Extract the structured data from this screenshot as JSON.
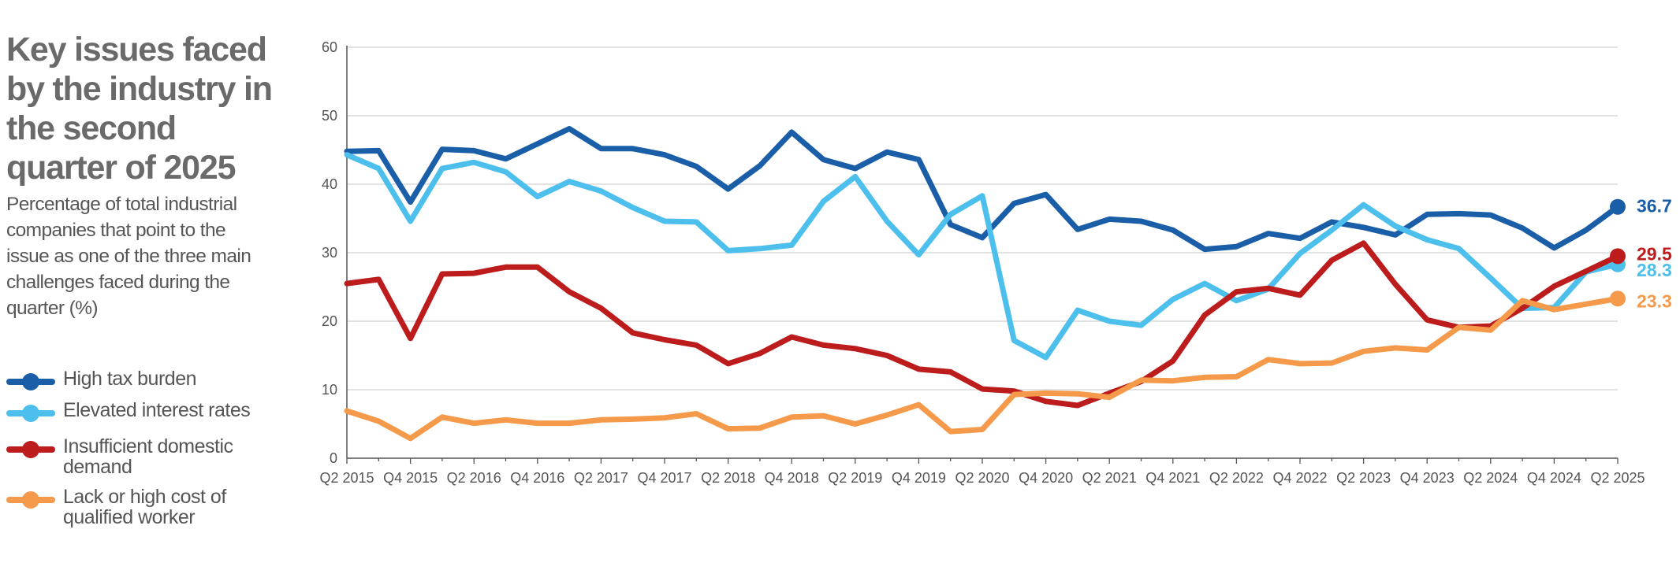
{
  "chart_data": {
    "type": "line",
    "title": "Key issues faced by the industry in the second quarter of 2025",
    "subtitle": "Percentage of total industrial companies that point to the issue as one of the three main challenges faced during the quarter (%)",
    "ylim": [
      0,
      60
    ],
    "yticks": [
      "0",
      "10",
      "20",
      "30",
      "40",
      "50",
      "60"
    ],
    "xtick_labels": [
      "Q2 2015",
      "Q4 2015",
      "Q2 2016",
      "Q4 2016",
      "Q2 2017",
      "Q4 2017",
      "Q2 2018",
      "Q4 2018",
      "Q2 2019",
      "Q4 2019",
      "Q2 2020",
      "Q4 2020",
      "Q2 2021",
      "Q4 2021",
      "Q2 2022",
      "Q4 2022",
      "Q2 2023",
      "Q4 2023",
      "Q2 2024",
      "Q4 2024",
      "Q2 2025"
    ],
    "grid": true,
    "legend_position": "left",
    "series": [
      {
        "name": "High tax burden",
        "color": "#1b5ea8",
        "end_label": "36.7",
        "values": [
          44.8,
          44.9,
          37.4,
          45.1,
          44.9,
          43.7,
          45.9,
          48.1,
          45.2,
          45.2,
          44.3,
          42.6,
          39.3,
          42.7,
          47.6,
          43.6,
          42.3,
          44.7,
          43.6,
          34.1,
          32.2,
          37.2,
          38.5,
          33.4,
          34.9,
          34.6,
          33.3,
          30.5,
          30.9,
          32.8,
          32.1,
          34.5,
          33.7,
          32.6,
          35.6,
          35.7,
          35.5,
          33.6,
          30.7,
          33.3,
          36.7
        ]
      },
      {
        "name": "Elevated interest rates",
        "color": "#4cbfec",
        "end_label": "28.3",
        "values": [
          44.3,
          42.3,
          34.6,
          42.3,
          43.2,
          41.8,
          38.2,
          40.4,
          39.0,
          36.6,
          34.6,
          34.5,
          30.3,
          30.6,
          31.1,
          37.5,
          41.1,
          34.6,
          29.7,
          35.6,
          38.3,
          17.2,
          14.7,
          21.6,
          20.0,
          19.4,
          23.2,
          25.5,
          23.0,
          24.7,
          29.9,
          33.3,
          37.0,
          33.9,
          31.9,
          30.6,
          26.3,
          21.9,
          22.0,
          27.2,
          28.3
        ]
      },
      {
        "name": "Insufficient domestic demand",
        "color": "#bc1c1c",
        "end_label": "29.5",
        "values": [
          25.5,
          26.1,
          17.5,
          26.9,
          27.0,
          27.9,
          27.9,
          24.3,
          21.9,
          18.3,
          17.3,
          16.5,
          13.8,
          15.3,
          17.7,
          16.5,
          16.0,
          15.0,
          13.0,
          12.6,
          10.1,
          9.8,
          8.3,
          7.7,
          9.5,
          11.2,
          14.2,
          20.9,
          24.3,
          24.8,
          23.8,
          28.9,
          31.4,
          25.4,
          20.2,
          19.1,
          19.3,
          21.9,
          25.1,
          27.3,
          29.5
        ]
      },
      {
        "name": "Lack or high cost of qualified worker",
        "color": "#f49a4a",
        "end_label": "23.3",
        "values": [
          6.9,
          5.4,
          2.9,
          6.0,
          5.1,
          5.6,
          5.1,
          5.1,
          5.6,
          5.7,
          5.9,
          6.5,
          4.3,
          4.4,
          6.0,
          6.2,
          5.0,
          6.3,
          7.8,
          3.9,
          4.2,
          9.3,
          9.5,
          9.4,
          8.9,
          11.4,
          11.3,
          11.8,
          11.9,
          14.4,
          13.8,
          13.9,
          15.6,
          16.1,
          15.8,
          19.1,
          18.7,
          23.0,
          21.7,
          22.5,
          23.3
        ]
      }
    ]
  }
}
